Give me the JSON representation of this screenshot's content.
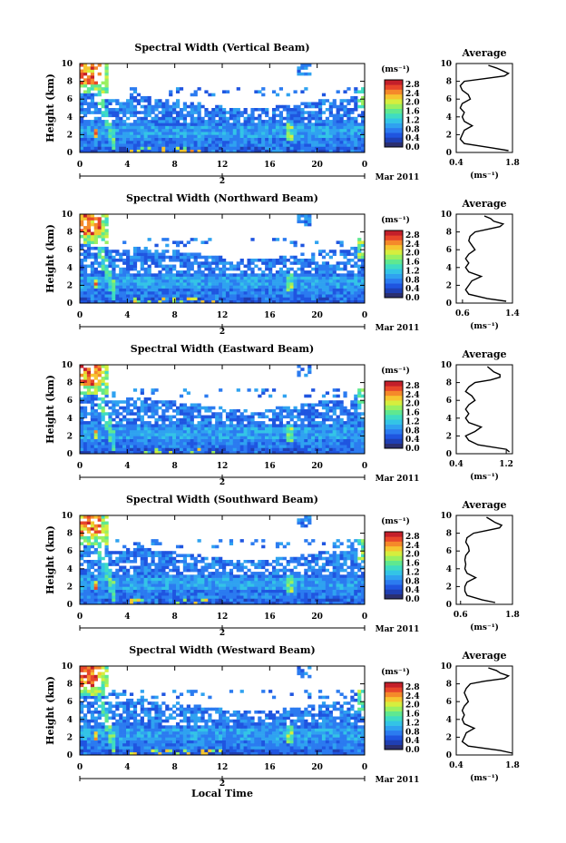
{
  "figure": {
    "xlabel": "Local Time",
    "date_label": "Mar 2011",
    "date_tick": "2"
  },
  "chart_data": [
    {
      "type": "heatmap",
      "title": "Spectral Width (Vertical Beam)",
      "ylabel": "Height (km)",
      "xlabel": "Local Time",
      "x_ticks": [
        "0",
        "4",
        "8",
        "12",
        "16",
        "20",
        "0"
      ],
      "xlim": [
        0,
        24
      ],
      "y_ticks": [
        "0",
        "2",
        "4",
        "6",
        "8",
        "10"
      ],
      "ylim": [
        0,
        10
      ],
      "colorbar": {
        "unit": "(ms⁻¹)",
        "ticks": [
          "0.0",
          "0.4",
          "0.8",
          "1.2",
          "1.6",
          "2.0",
          "2.4",
          "2.8"
        ],
        "range": [
          0,
          3.0
        ]
      },
      "average": {
        "title": "Average",
        "xlabel": "(ms⁻¹)",
        "x_ticks": [
          "0.4",
          "1.8"
        ],
        "xlim": [
          0.4,
          1.8
        ],
        "y_ticks": [
          "0",
          "2",
          "4",
          "6",
          "8",
          "10"
        ],
        "heights": [
          0.2,
          0.5,
          1.0,
          1.5,
          2.0,
          2.5,
          3.0,
          3.5,
          4.0,
          4.5,
          5.0,
          5.5,
          6.0,
          6.5,
          7.0,
          7.5,
          8.0,
          8.3,
          8.6,
          8.9,
          9.2,
          9.5,
          9.8
        ],
        "values": [
          1.7,
          1.3,
          0.6,
          0.5,
          0.55,
          0.6,
          0.8,
          0.6,
          0.55,
          0.6,
          0.5,
          0.55,
          0.75,
          0.7,
          0.55,
          0.5,
          0.6,
          1.1,
          1.6,
          1.7,
          1.55,
          1.4,
          1.2
        ]
      }
    },
    {
      "type": "heatmap",
      "title": "Spectral Width (Northward Beam)",
      "ylabel": "Height (km)",
      "xlabel": "Local Time",
      "x_ticks": [
        "0",
        "4",
        "8",
        "12",
        "16",
        "20",
        "0"
      ],
      "xlim": [
        0,
        24
      ],
      "y_ticks": [
        "0",
        "2",
        "4",
        "6",
        "8",
        "10"
      ],
      "ylim": [
        0,
        10
      ],
      "colorbar": {
        "unit": "(ms⁻¹)",
        "ticks": [
          "0.0",
          "0.4",
          "0.8",
          "1.2",
          "1.6",
          "2.0",
          "2.4",
          "2.8"
        ],
        "range": [
          0,
          3.0
        ]
      },
      "average": {
        "title": "Average",
        "xlabel": "(ms⁻¹)",
        "x_ticks": [
          "0.6",
          "1.4"
        ],
        "xlim": [
          0.5,
          1.4
        ],
        "y_ticks": [
          "0",
          "2",
          "4",
          "6",
          "8",
          "10"
        ],
        "heights": [
          0.2,
          0.5,
          1.0,
          1.5,
          2.0,
          2.5,
          3.0,
          3.5,
          4.0,
          4.5,
          5.0,
          5.5,
          6.0,
          6.5,
          7.0,
          7.5,
          8.0,
          8.3,
          8.6,
          8.9,
          9.2,
          9.5,
          9.8
        ],
        "values": [
          1.3,
          1.0,
          0.7,
          0.65,
          0.7,
          0.75,
          0.9,
          0.7,
          0.65,
          0.7,
          0.65,
          0.7,
          0.8,
          0.75,
          0.7,
          0.72,
          0.8,
          1.0,
          1.2,
          1.25,
          1.1,
          1.05,
          0.95
        ]
      }
    },
    {
      "type": "heatmap",
      "title": "Spectral Width (Eastward Beam)",
      "ylabel": "Height (km)",
      "xlabel": "Local Time",
      "x_ticks": [
        "0",
        "4",
        "8",
        "12",
        "16",
        "20",
        "0"
      ],
      "xlim": [
        0,
        24
      ],
      "y_ticks": [
        "0",
        "2",
        "4",
        "6",
        "8",
        "10"
      ],
      "ylim": [
        0,
        10
      ],
      "colorbar": {
        "unit": "(ms⁻¹)",
        "ticks": [
          "0.0",
          "0.4",
          "0.8",
          "1.2",
          "1.6",
          "2.0",
          "2.4",
          "2.8"
        ],
        "range": [
          0,
          3.0
        ]
      },
      "average": {
        "title": "Average",
        "xlabel": "(ms⁻¹)",
        "x_ticks": [
          "0.4",
          "1.2"
        ],
        "xlim": [
          0.4,
          1.3
        ],
        "y_ticks": [
          "0",
          "2",
          "4",
          "6",
          "8",
          "10"
        ],
        "heights": [
          0.2,
          0.5,
          1.0,
          1.5,
          2.0,
          2.5,
          3.0,
          3.5,
          4.0,
          4.5,
          5.0,
          5.5,
          6.0,
          6.5,
          7.0,
          7.5,
          8.0,
          8.3,
          8.6,
          8.9,
          9.2,
          9.5,
          9.8
        ],
        "values": [
          1.25,
          1.2,
          0.75,
          0.6,
          0.55,
          0.7,
          0.8,
          0.6,
          0.55,
          0.6,
          0.55,
          0.6,
          0.7,
          0.65,
          0.55,
          0.6,
          0.7,
          0.95,
          1.1,
          1.1,
          1.0,
          0.95,
          0.9
        ]
      }
    },
    {
      "type": "heatmap",
      "title": "Spectral Width (Southward Beam)",
      "ylabel": "Height (km)",
      "xlabel": "Local Time",
      "x_ticks": [
        "0",
        "4",
        "8",
        "12",
        "16",
        "20",
        "0"
      ],
      "xlim": [
        0,
        24
      ],
      "y_ticks": [
        "0",
        "2",
        "4",
        "6",
        "8",
        "10"
      ],
      "ylim": [
        0,
        10
      ],
      "colorbar": {
        "unit": "(ms⁻¹)",
        "ticks": [
          "0.0",
          "0.4",
          "0.8",
          "1.2",
          "1.6",
          "2.0",
          "2.4",
          "2.8"
        ],
        "range": [
          0,
          3.0
        ]
      },
      "average": {
        "title": "Average",
        "xlabel": "(ms⁻¹)",
        "x_ticks": [
          "0.6",
          "1.8"
        ],
        "xlim": [
          0.5,
          1.8
        ],
        "y_ticks": [
          "0",
          "2",
          "4",
          "6",
          "8",
          "10"
        ],
        "heights": [
          0.2,
          0.5,
          1.0,
          1.5,
          2.0,
          2.5,
          3.0,
          3.5,
          4.0,
          4.5,
          5.0,
          5.5,
          6.0,
          6.5,
          7.0,
          7.5,
          8.0,
          8.3,
          8.6,
          8.9,
          9.2,
          9.5,
          9.8
        ],
        "values": [
          1.4,
          1.1,
          0.75,
          0.7,
          0.7,
          0.75,
          0.95,
          0.75,
          0.7,
          0.72,
          0.7,
          0.72,
          0.8,
          0.78,
          0.72,
          0.75,
          0.9,
          1.2,
          1.5,
          1.55,
          1.4,
          1.3,
          1.2
        ]
      }
    },
    {
      "type": "heatmap",
      "title": "Spectral Width (Westward Beam)",
      "ylabel": "Height (km)",
      "xlabel": "Local Time",
      "x_ticks": [
        "0",
        "4",
        "8",
        "12",
        "16",
        "20",
        "0"
      ],
      "xlim": [
        0,
        24
      ],
      "y_ticks": [
        "0",
        "2",
        "4",
        "6",
        "8",
        "10"
      ],
      "ylim": [
        0,
        10
      ],
      "colorbar": {
        "unit": "(ms⁻¹)",
        "ticks": [
          "0.0",
          "0.4",
          "0.8",
          "1.2",
          "1.6",
          "2.0",
          "2.4",
          "2.8"
        ],
        "range": [
          0,
          3.0
        ]
      },
      "average": {
        "title": "Average",
        "xlabel": "(ms⁻¹)",
        "x_ticks": [
          "0.4",
          "1.8"
        ],
        "xlim": [
          0.4,
          1.8
        ],
        "y_ticks": [
          "0",
          "2",
          "4",
          "6",
          "8",
          "10"
        ],
        "heights": [
          0.2,
          0.5,
          1.0,
          1.5,
          2.0,
          2.5,
          3.0,
          3.5,
          4.0,
          4.5,
          5.0,
          5.5,
          6.0,
          6.5,
          7.0,
          7.5,
          8.0,
          8.3,
          8.6,
          8.9,
          9.2,
          9.5,
          9.8
        ],
        "values": [
          1.8,
          1.5,
          0.7,
          0.55,
          0.6,
          0.65,
          0.85,
          0.6,
          0.55,
          0.6,
          0.55,
          0.6,
          0.7,
          0.65,
          0.6,
          0.65,
          0.75,
          1.1,
          1.6,
          1.7,
          1.5,
          1.4,
          1.2
        ]
      }
    }
  ],
  "colorscale": [
    "#2b2f70",
    "#1f3fb3",
    "#1f55e0",
    "#2b7bf0",
    "#2fa2f0",
    "#33c4e6",
    "#3fdcc2",
    "#5fe890",
    "#9af060",
    "#d6ee3e",
    "#f6c530",
    "#f5892a",
    "#e8462a",
    "#c41f2a"
  ]
}
